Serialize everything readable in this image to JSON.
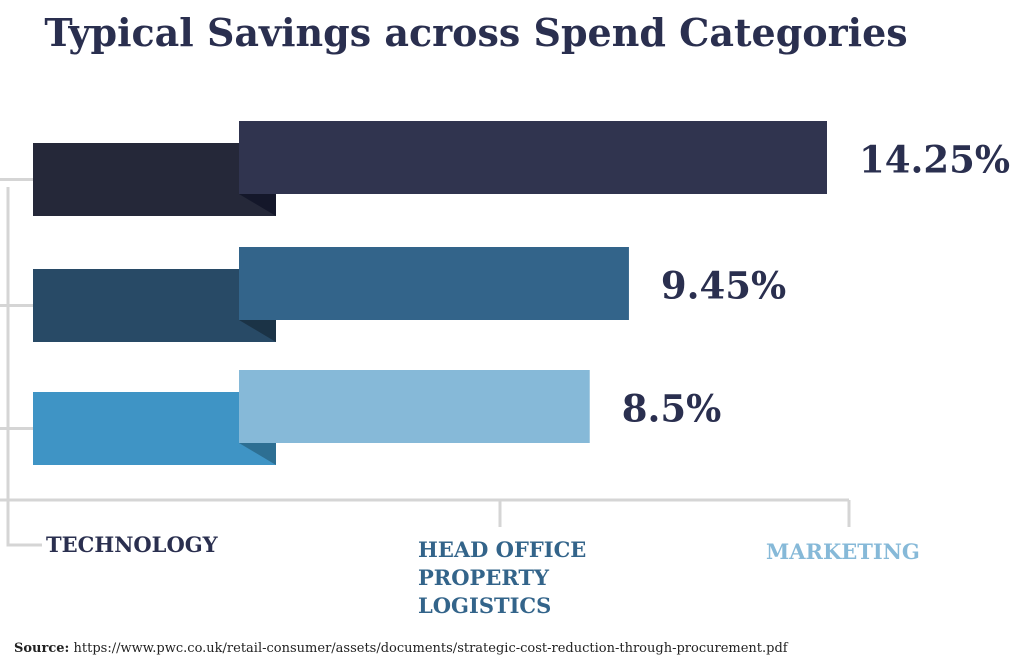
{
  "chart_data": {
    "type": "bar",
    "title": "Typical Savings across Spend Categories",
    "orientation": "horizontal",
    "series": [
      {
        "label": "14.25%",
        "value": 14.25,
        "color": "#30344f",
        "tab_color": "#252839",
        "fold_color": "#14172a"
      },
      {
        "label": "9.45%",
        "value": 9.45,
        "color": "#33648a",
        "tab_color": "#284a66",
        "fold_color": "#1b3346"
      },
      {
        "label": "8.5%",
        "value": 8.5,
        "color": "#86b9d8",
        "tab_color": "#3f94c5",
        "fold_color": "#2d6f93"
      }
    ],
    "categories": [
      {
        "lines": [
          "TECHNOLOGY"
        ],
        "color": "#2a2f4f"
      },
      {
        "lines": [
          "HEAD OFFICE",
          "PROPERTY",
          "LOGISTICS"
        ],
        "color": "#33648a"
      },
      {
        "lines": [
          "MARKETING"
        ],
        "color": "#86b9d8"
      }
    ],
    "xlim": [
      0,
      14.25
    ]
  },
  "source": {
    "label": "Source:",
    "url": "https://www.pwc.co.uk/retail-consumer/assets/documents/strategic-cost-reduction-through-procurement.pdf"
  }
}
